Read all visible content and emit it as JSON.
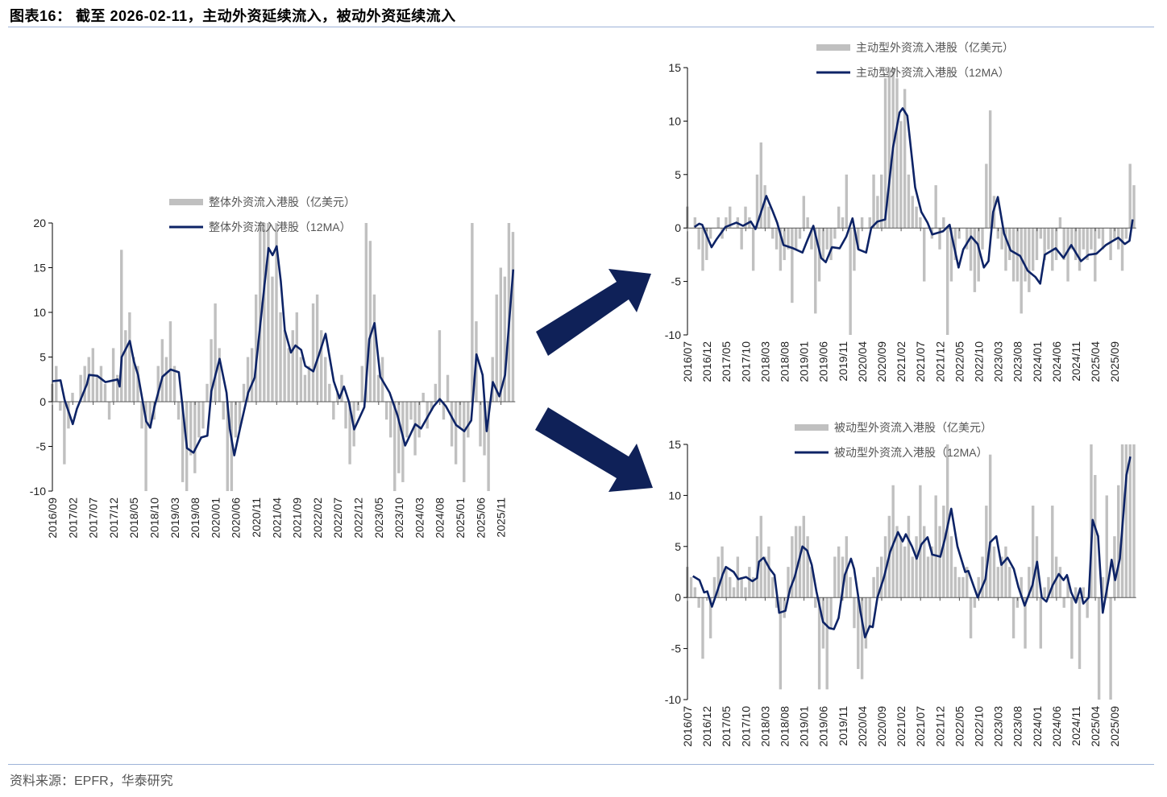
{
  "header": {
    "title": "图表16： 截至 2026-02-11，主动外资延续流入，被动外资延续流入"
  },
  "footer": {
    "source": "资料来源：EPFR，华泰研究"
  },
  "colors": {
    "bar": "#c0c0c0",
    "line": "#0d2366",
    "arrow": "#0f2158",
    "rule": "#9db3d8"
  },
  "chart_data": [
    {
      "id": "overall",
      "type": "bar+line",
      "x_unit": "months since 2016/09",
      "legend": {
        "bar": "整体外资流入港股（亿美元）",
        "line": "整体外资流入港股（12MA）",
        "placement": "top-center"
      },
      "ylim": [
        -10,
        20
      ],
      "yticks": [
        -10,
        -5,
        0,
        5,
        10,
        15,
        20
      ],
      "xticks": [
        "2016/09",
        "2017/02",
        "2017/07",
        "2017/12",
        "2018/05",
        "2018/10",
        "2019/03",
        "2019/08",
        "2020/01",
        "2020/06",
        "2020/11",
        "2021/04",
        "2021/09",
        "2022/02",
        "2022/07",
        "2022/12",
        "2023/05",
        "2023/10",
        "2024/03",
        "2024/08",
        "2025/01",
        "2025/06",
        "2025/11"
      ],
      "bars": [
        2,
        4,
        -1,
        -7,
        -3,
        1,
        0,
        3,
        4,
        5,
        6,
        3,
        4,
        2,
        -2,
        6,
        3,
        17,
        8,
        10,
        5,
        4,
        -3,
        -10,
        -3,
        -2,
        4,
        7,
        5,
        9,
        4,
        -2,
        -9,
        -10,
        -6,
        -8,
        -4,
        -3,
        2,
        7,
        11,
        6,
        -2,
        -10,
        -10,
        -4,
        -3,
        2,
        5,
        6,
        12,
        20,
        20,
        20,
        14,
        20,
        10,
        8,
        6,
        8,
        10,
        5,
        3,
        4,
        11,
        12,
        8,
        5,
        2,
        -2,
        1,
        3,
        -3,
        -7,
        -5,
        -1,
        4,
        20,
        18,
        12,
        3,
        5,
        -2,
        -4,
        -10,
        -8,
        -9,
        -4,
        -2,
        -6,
        -4,
        1,
        -3,
        -1,
        2,
        8,
        -2,
        3,
        -5,
        -7,
        -3,
        -9,
        -4,
        20,
        9,
        -5,
        -6,
        -10,
        5,
        12,
        15,
        14,
        20,
        19
      ],
      "ma": [
        [
          0,
          2.3
        ],
        [
          2,
          2.4
        ],
        [
          3,
          0.2
        ],
        [
          5,
          -2.5
        ],
        [
          6,
          -0.8
        ],
        [
          8.5,
          2.0
        ],
        [
          9,
          3.0
        ],
        [
          11,
          2.9
        ],
        [
          13,
          2.2
        ],
        [
          16,
          2.5
        ],
        [
          16.5,
          1.7
        ],
        [
          17,
          5.0
        ],
        [
          19,
          6.8
        ],
        [
          20,
          4.5
        ],
        [
          21,
          3.0
        ],
        [
          23,
          -2.2
        ],
        [
          24,
          -2.9
        ],
        [
          25,
          -0.6
        ],
        [
          27,
          2.8
        ],
        [
          29,
          3.6
        ],
        [
          31,
          3.3
        ],
        [
          33,
          -5.2
        ],
        [
          34.6,
          -5.7
        ],
        [
          36.5,
          -4.0
        ],
        [
          38,
          -3.8
        ],
        [
          39,
          1.2
        ],
        [
          41,
          4.8
        ],
        [
          42.7,
          1.0
        ],
        [
          43.5,
          -3.0
        ],
        [
          44.6,
          -6.0
        ],
        [
          46,
          -3.0
        ],
        [
          48,
          1.0
        ],
        [
          49.6,
          2.7
        ],
        [
          52,
          13.0
        ],
        [
          53,
          17.2
        ],
        [
          54,
          16.4
        ],
        [
          55,
          17.4
        ],
        [
          56,
          13.5
        ],
        [
          57,
          8.0
        ],
        [
          58.5,
          5.5
        ],
        [
          59.6,
          6.3
        ],
        [
          61,
          5.8
        ],
        [
          62,
          4.0
        ],
        [
          64,
          3.4
        ],
        [
          65.4,
          5.3
        ],
        [
          67,
          7.6
        ],
        [
          69,
          2.3
        ],
        [
          70.4,
          0.4
        ],
        [
          71.5,
          1.7
        ],
        [
          72.7,
          0.0
        ],
        [
          74,
          -3.1
        ],
        [
          76.5,
          -0.6
        ],
        [
          77.7,
          7.0
        ],
        [
          79,
          8.8
        ],
        [
          80.4,
          2.8
        ],
        [
          82.7,
          1.0
        ],
        [
          84.6,
          -1.5
        ],
        [
          86.5,
          -4.9
        ],
        [
          89,
          -2.5
        ],
        [
          90.4,
          -3.0
        ],
        [
          93.5,
          -0.5
        ],
        [
          95,
          0.3
        ],
        [
          96.5,
          -0.5
        ],
        [
          99,
          -2.6
        ],
        [
          101,
          -3.3
        ],
        [
          102.7,
          -2.1
        ],
        [
          104,
          5.3
        ],
        [
          105.5,
          3.0
        ],
        [
          106.5,
          -3.3
        ],
        [
          108,
          2.2
        ],
        [
          109.6,
          0.6
        ],
        [
          111,
          3.0
        ],
        [
          113,
          14.8
        ]
      ]
    },
    {
      "id": "active",
      "type": "bar+line",
      "x_unit": "months since 2016/07",
      "legend": {
        "bar": "主动型外资流入港股（亿美元）",
        "line": "主动型外资流入港股（12MA）",
        "placement": "top-center"
      },
      "ylim": [
        -10,
        15
      ],
      "yticks": [
        -10,
        -5,
        0,
        5,
        10,
        15
      ],
      "xticks": [
        "2016/07",
        "2016/12",
        "2017/05",
        "2017/10",
        "2018/03",
        "2018/08",
        "2019/01",
        "2019/06",
        "2019/11",
        "2020/04",
        "2020/09",
        "2021/02",
        "2021/07",
        "2021/12",
        "2022/05",
        "2022/10",
        "2023/03",
        "2023/08",
        "2024/01",
        "2024/06",
        "2024/11",
        "2025/04",
        "2025/09"
      ],
      "bars": [
        2,
        0,
        1,
        -2,
        -4,
        -3,
        -1,
        0,
        1,
        -1,
        1,
        2,
        0,
        1,
        -2,
        2,
        1,
        -4,
        5,
        8,
        4,
        2,
        -1,
        -2,
        -4,
        -3,
        -2,
        -7,
        -2,
        -1,
        3,
        1,
        -2,
        -8,
        -5,
        -3,
        -2,
        -3,
        -1,
        2,
        1,
        5,
        -10,
        -4,
        -2,
        1,
        0,
        1,
        5,
        3,
        5,
        14,
        15,
        15,
        14,
        10,
        13,
        5,
        3,
        2,
        1,
        -5,
        0,
        -1,
        4,
        -2,
        1,
        -10,
        -5,
        -3,
        -1,
        0,
        -2,
        -4,
        -6,
        -5,
        -2,
        6,
        11,
        3,
        -1,
        -2,
        -4,
        -3,
        -5,
        -5,
        -8,
        -5,
        -6,
        -4,
        -3,
        -1,
        -3,
        -2,
        -4,
        -3,
        1,
        -3,
        -5,
        -2,
        -3,
        -4,
        -2,
        -3,
        -2,
        -5,
        -1,
        -2,
        0,
        -3,
        -1,
        -2,
        -4,
        -1,
        6,
        4
      ],
      "ma": [
        [
          1.8,
          0.1
        ],
        [
          3,
          0.4
        ],
        [
          3.8,
          0.3
        ],
        [
          6.2,
          -1.8
        ],
        [
          7.4,
          -1.1
        ],
        [
          9.8,
          0.1
        ],
        [
          12.6,
          0.5
        ],
        [
          14.3,
          0.2
        ],
        [
          16.3,
          0.6
        ],
        [
          17.5,
          -0.1
        ],
        [
          18.7,
          1.2
        ],
        [
          20.3,
          3.0
        ],
        [
          21.9,
          1.6
        ],
        [
          23.1,
          0.5
        ],
        [
          24.7,
          -1.6
        ],
        [
          27.2,
          -1.9
        ],
        [
          29.6,
          -2.3
        ],
        [
          30.8,
          -1.2
        ],
        [
          32.4,
          0.2
        ],
        [
          34.4,
          -2.8
        ],
        [
          35.6,
          -3.2
        ],
        [
          37.2,
          -1.8
        ],
        [
          39.2,
          -1.9
        ],
        [
          40.9,
          -0.8
        ],
        [
          42.5,
          0.9
        ],
        [
          44,
          -2.0
        ],
        [
          46,
          -2.3
        ],
        [
          47.3,
          0.0
        ],
        [
          48.9,
          0.6
        ],
        [
          50.9,
          0.8
        ],
        [
          52.9,
          7.5
        ],
        [
          54.6,
          10.8
        ],
        [
          55.4,
          11.2
        ],
        [
          56.6,
          10.5
        ],
        [
          58.6,
          3.8
        ],
        [
          60.2,
          1.5
        ],
        [
          61.8,
          0.5
        ],
        [
          63,
          -0.6
        ],
        [
          65.8,
          -0.3
        ],
        [
          67.5,
          0.3
        ],
        [
          68.2,
          -1.0
        ],
        [
          69.8,
          -3.7
        ],
        [
          71,
          -2.0
        ],
        [
          73,
          -0.8
        ],
        [
          74.7,
          -1.5
        ],
        [
          76.3,
          -3.7
        ],
        [
          77.5,
          -3.1
        ],
        [
          78.7,
          1.5
        ],
        [
          79.9,
          2.9
        ],
        [
          81.5,
          -0.5
        ],
        [
          83.2,
          -2.1
        ],
        [
          85.6,
          -2.6
        ],
        [
          87.6,
          -4.0
        ],
        [
          89.6,
          -4.6
        ],
        [
          90.8,
          -5.2
        ],
        [
          92,
          -2.5
        ],
        [
          94.8,
          -1.9
        ],
        [
          96.8,
          -2.8
        ],
        [
          98.8,
          -1.6
        ],
        [
          101.3,
          -3.1
        ],
        [
          103.3,
          -2.5
        ],
        [
          105.3,
          -2.4
        ],
        [
          107.7,
          -1.6
        ],
        [
          110.9,
          -0.9
        ],
        [
          112.6,
          -1.5
        ],
        [
          113.8,
          -1.2
        ],
        [
          114.6,
          0.8
        ]
      ]
    },
    {
      "id": "passive",
      "type": "bar+line",
      "x_unit": "months since 2016/07",
      "legend": {
        "bar": "被动型外资流入港股（亿美元）",
        "line": "被动型外资流入港股（12MA）",
        "placement": "top-center"
      },
      "ylim": [
        -10,
        15
      ],
      "yticks": [
        -10,
        -5,
        0,
        5,
        10,
        15
      ],
      "xticks": [
        "2016/07",
        "2016/12",
        "2017/05",
        "2017/10",
        "2018/03",
        "2018/08",
        "2019/01",
        "2019/06",
        "2019/11",
        "2020/04",
        "2020/09",
        "2021/02",
        "2021/07",
        "2021/12",
        "2022/05",
        "2022/10",
        "2023/03",
        "2023/08",
        "2024/01",
        "2024/06",
        "2024/11",
        "2025/04",
        "2025/09"
      ],
      "bars": [
        3,
        2,
        1,
        -1,
        -6,
        0,
        -4,
        2,
        4,
        5,
        3,
        2,
        1,
        4,
        2,
        1,
        3,
        2,
        6,
        8,
        4,
        5,
        2,
        -1,
        -9,
        -2,
        3,
        6,
        7,
        7,
        8,
        6,
        3,
        -1,
        -9,
        -5,
        -9,
        -3,
        4,
        5,
        4,
        6,
        2,
        -3,
        -7,
        -8,
        -5,
        -3,
        2,
        3,
        4,
        6,
        8,
        11,
        7,
        6,
        5,
        8,
        4,
        6,
        11,
        7,
        4,
        5,
        10,
        7,
        9,
        15,
        6,
        3,
        2,
        2,
        3,
        -4,
        -1,
        2,
        4,
        9,
        14,
        5,
        3,
        4,
        5,
        3,
        -4,
        -1,
        2,
        -5,
        3,
        9,
        6,
        -5,
        1,
        2,
        9,
        4,
        3,
        -1,
        2,
        -6,
        1,
        -7,
        1,
        -2,
        15,
        12,
        -10,
        2,
        10,
        -10,
        6,
        11,
        15,
        15,
        15,
        15
      ],
      "ma": [
        [
          1.4,
          2.1
        ],
        [
          3.1,
          1.7
        ],
        [
          4.3,
          0.5
        ],
        [
          5.1,
          0.6
        ],
        [
          6.3,
          -0.9
        ],
        [
          7.5,
          0.4
        ],
        [
          9.1,
          2.3
        ],
        [
          9.9,
          3.0
        ],
        [
          11.9,
          2.5
        ],
        [
          13.1,
          1.8
        ],
        [
          15.1,
          2.0
        ],
        [
          16.7,
          1.6
        ],
        [
          17.9,
          1.9
        ],
        [
          18.4,
          3.5
        ],
        [
          19.6,
          3.9
        ],
        [
          21.2,
          2.8
        ],
        [
          22.4,
          2.2
        ],
        [
          23.6,
          -1.5
        ],
        [
          25.2,
          -1.3
        ],
        [
          26.4,
          0.8
        ],
        [
          27.6,
          2.0
        ],
        [
          29.6,
          5.0
        ],
        [
          30.8,
          4.6
        ],
        [
          32,
          3.2
        ],
        [
          33.2,
          0.6
        ],
        [
          34.9,
          -2.4
        ],
        [
          36.5,
          -3.0
        ],
        [
          37.7,
          -3.1
        ],
        [
          38.9,
          -2.0
        ],
        [
          40.5,
          2.2
        ],
        [
          42.1,
          3.8
        ],
        [
          42.9,
          2.8
        ],
        [
          44.5,
          -1.3
        ],
        [
          45.7,
          -3.9
        ],
        [
          46.9,
          -2.8
        ],
        [
          47.7,
          -2.9
        ],
        [
          48.9,
          0.0
        ],
        [
          50.6,
          2.0
        ],
        [
          52.2,
          4.5
        ],
        [
          54.2,
          6.4
        ],
        [
          55.4,
          5.5
        ],
        [
          56.2,
          6.2
        ],
        [
          57.8,
          5.0
        ],
        [
          59,
          3.8
        ],
        [
          60.2,
          5.2
        ],
        [
          61.8,
          5.9
        ],
        [
          63,
          4.2
        ],
        [
          65.1,
          4.0
        ],
        [
          66.3,
          5.8
        ],
        [
          67.9,
          8.7
        ],
        [
          69.5,
          5.0
        ],
        [
          71.5,
          2.5
        ],
        [
          72.3,
          2.6
        ],
        [
          74.7,
          0.0
        ],
        [
          76.7,
          1.8
        ],
        [
          77.9,
          5.4
        ],
        [
          79.5,
          6.0
        ],
        [
          80.8,
          3.2
        ],
        [
          82.4,
          3.9
        ],
        [
          84,
          2.8
        ],
        [
          85.2,
          1.0
        ],
        [
          86.8,
          -0.8
        ],
        [
          88.8,
          1.2
        ],
        [
          90,
          3.5
        ],
        [
          91.2,
          0.0
        ],
        [
          92.4,
          -0.4
        ],
        [
          94,
          1.2
        ],
        [
          95.6,
          2.3
        ],
        [
          96.8,
          1.7
        ],
        [
          97.7,
          2.2
        ],
        [
          98.8,
          0.5
        ],
        [
          100,
          -0.5
        ],
        [
          101.1,
          0.9
        ],
        [
          101.9,
          -0.6
        ],
        [
          103.3,
          0.0
        ],
        [
          104.3,
          7.6
        ],
        [
          105.7,
          6.0
        ],
        [
          106.9,
          -1.5
        ],
        [
          108.5,
          2.0
        ],
        [
          109.2,
          3.7
        ],
        [
          110.1,
          1.7
        ],
        [
          111.3,
          3.8
        ],
        [
          113,
          12.0
        ],
        [
          114,
          13.8
        ]
      ]
    }
  ]
}
